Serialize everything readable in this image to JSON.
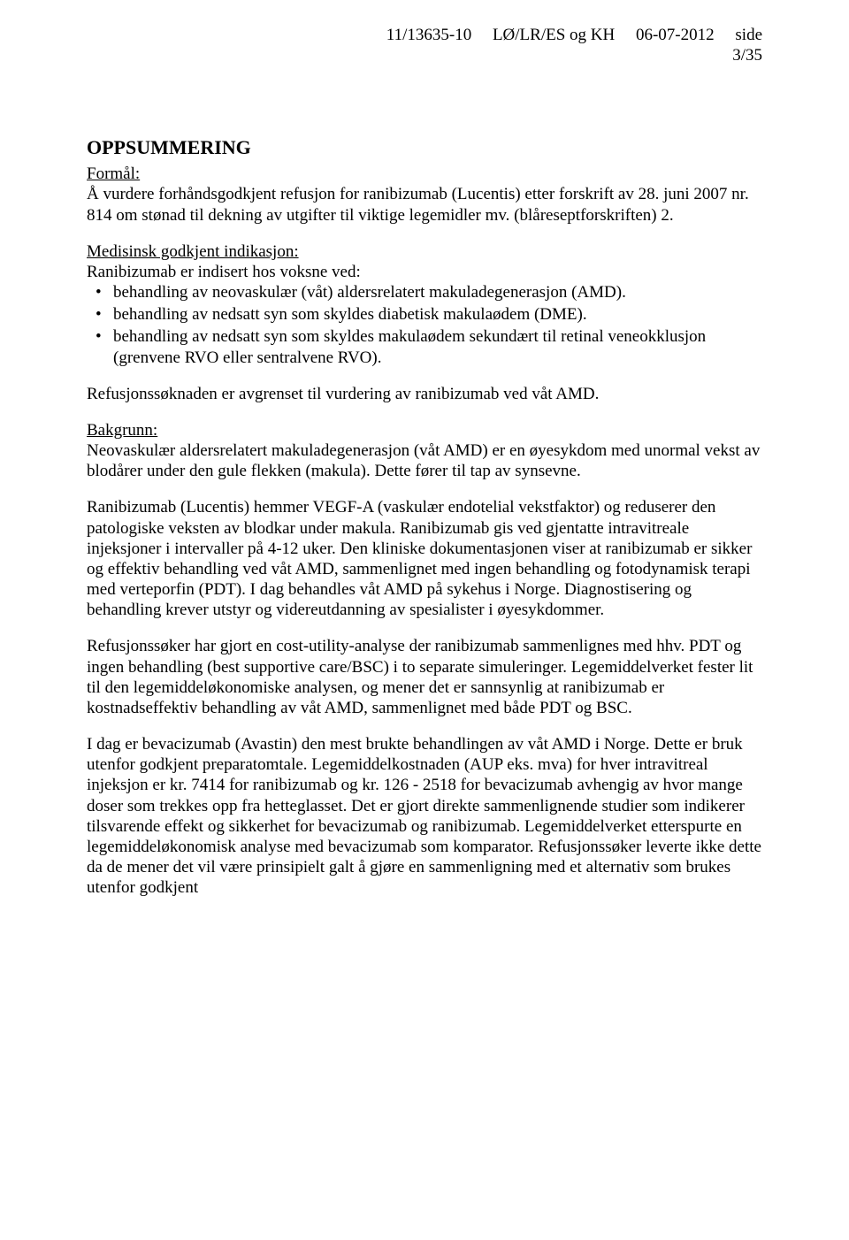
{
  "header": {
    "ref": "11/13635-10",
    "code": "LØ/LR/ES og KH",
    "date": "06-07-2012",
    "side_label": "side",
    "page_num": "3/35"
  },
  "title": "OPPSUMMERING",
  "formal": {
    "label": "Formål:",
    "text": "Å vurdere forhåndsgodkjent refusjon for ranibizumab (Lucentis) etter forskrift av 28. juni 2007 nr. 814 om stønad til dekning av utgifter til viktige legemidler mv. (blåreseptforskriften) 2."
  },
  "indikasjon": {
    "label": "Medisinsk godkjent indikasjon:",
    "intro": "Ranibizumab er indisert hos voksne ved:",
    "items": [
      "behandling av neovaskulær (våt) aldersrelatert makuladegenerasjon (AMD).",
      "behandling av nedsatt syn som skyldes diabetisk makulaødem (DME).",
      "behandling av nedsatt syn som skyldes makulaødem sekundært til retinal veneokklusjon (grenvene RVO eller sentralvene RVO)."
    ]
  },
  "refusjon_note": "Refusjonssøknaden er avgrenset til vurdering av ranibizumab ved våt AMD.",
  "bakgrunn": {
    "label": "Bakgrunn:",
    "text": "Neovaskulær aldersrelatert makuladegenerasjon (våt AMD) er en øyesykdom med unormal vekst av blodårer under den gule flekken (makula). Dette fører til tap av synsevne."
  },
  "paragraphs": {
    "p1": "Ranibizumab (Lucentis) hemmer VEGF-A (vaskulær endotelial vekstfaktor) og reduserer den patologiske veksten av blodkar under makula. Ranibizumab gis ved gjentatte intravitreale injeksjoner i intervaller på 4-12 uker. Den kliniske dokumentasjonen viser at ranibizumab er sikker og effektiv behandling ved våt AMD, sammenlignet med ingen behandling og fotodynamisk terapi med verteporfin (PDT). I dag behandles våt AMD på sykehus i Norge. Diagnostisering og behandling krever utstyr og videreutdanning av spesialister i øyesykdommer.",
    "p2": "Refusjonssøker har gjort en cost-utility-analyse der ranibizumab sammenlignes med hhv. PDT og ingen behandling (best supportive care/BSC) i to separate simuleringer. Legemiddelverket fester lit til den legemiddeløkonomiske analysen, og mener det er sannsynlig at ranibizumab er kostnadseffektiv behandling av våt AMD, sammenlignet med både PDT og BSC.",
    "p3": "I dag er bevacizumab (Avastin) den mest brukte behandlingen av våt AMD i Norge. Dette er bruk utenfor godkjent preparatomtale. Legemiddelkostnaden (AUP eks. mva) for hver intravitreal injeksjon er kr. 7414 for ranibizumab og kr. 126 - 2518 for bevacizumab avhengig av hvor mange doser som trekkes opp fra hetteglasset. Det er gjort direkte sammenlignende studier som indikerer tilsvarende effekt og sikkerhet for bevacizumab og ranibizumab. Legemiddelverket etterspurte en legemiddeløkonomisk analyse med bevacizumab som komparator. Refusjonssøker leverte ikke dette da de mener det vil være prinsipielt galt å gjøre en sammenligning med et alternativ som brukes utenfor godkjent"
  }
}
